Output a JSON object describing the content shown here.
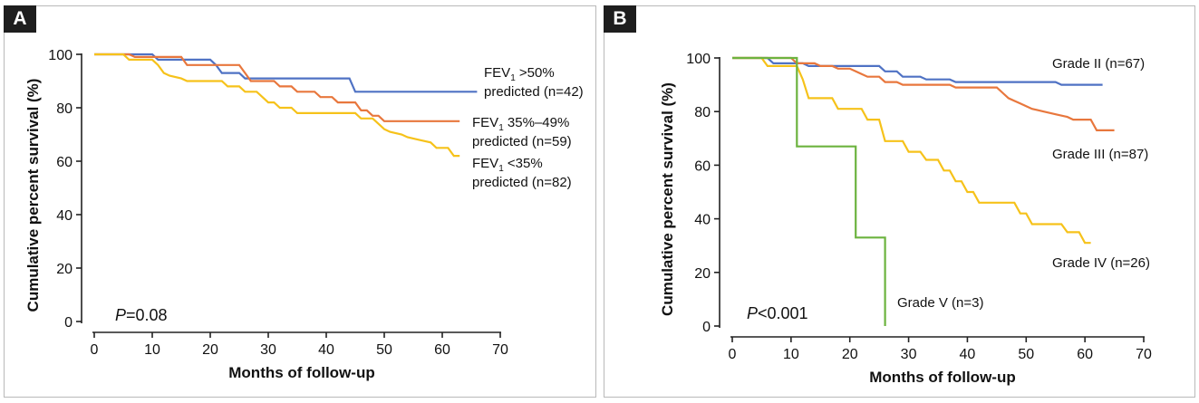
{
  "colors": {
    "blue": "#4f72c4",
    "orange": "#e8773d",
    "yellow": "#f6c21a",
    "green": "#6cb33f",
    "axis": "#222222",
    "frame": "#b9b9b9"
  },
  "chart_data": [
    {
      "panel_label": "A",
      "type": "line",
      "step": true,
      "xlabel": "Months of follow-up",
      "ylabel": "Cumulative percent survival (%)",
      "xlim": [
        0,
        70
      ],
      "ylim": [
        0,
        100
      ],
      "xticks": [
        0,
        10,
        20,
        30,
        40,
        50,
        60,
        70
      ],
      "yticks": [
        0,
        20,
        40,
        60,
        80,
        100
      ],
      "grid": false,
      "annotation": {
        "italic": "P",
        "rest": "=0.08"
      },
      "series": [
        {
          "label_line1": "FEV₁ >50%",
          "label_line2": "predicted  (n=42)",
          "color": "blue",
          "points": [
            [
              0,
              100
            ],
            [
              10,
              100
            ],
            [
              11,
              98
            ],
            [
              20,
              98
            ],
            [
              21,
              96
            ],
            [
              22,
              93
            ],
            [
              25,
              93
            ],
            [
              26,
              91
            ],
            [
              44,
              91
            ],
            [
              45,
              86
            ],
            [
              66,
              86
            ]
          ]
        },
        {
          "label_line1": "FEV₁ 35%–49%",
          "label_line2": "predicted (n=59)",
          "color": "orange",
          "points": [
            [
              0,
              100
            ],
            [
              6,
              100
            ],
            [
              7,
              99
            ],
            [
              15,
              99
            ],
            [
              16,
              96
            ],
            [
              25,
              96
            ],
            [
              26,
              93
            ],
            [
              27,
              90
            ],
            [
              31,
              90
            ],
            [
              32,
              88
            ],
            [
              34,
              88
            ],
            [
              35,
              86
            ],
            [
              38,
              86
            ],
            [
              39,
              84
            ],
            [
              41,
              84
            ],
            [
              42,
              82
            ],
            [
              45,
              82
            ],
            [
              46,
              79
            ],
            [
              47,
              79
            ],
            [
              48,
              77
            ],
            [
              49,
              77
            ],
            [
              50,
              75
            ],
            [
              63,
              75
            ]
          ]
        },
        {
          "label_line1": "FEV₁ <35%",
          "label_line2": "predicted (n=82)",
          "color": "yellow",
          "points": [
            [
              0,
              100
            ],
            [
              5,
              100
            ],
            [
              6,
              98
            ],
            [
              10,
              98
            ],
            [
              11,
              96
            ],
            [
              12,
              93
            ],
            [
              13,
              92
            ],
            [
              15,
              91
            ],
            [
              16,
              90
            ],
            [
              22,
              90
            ],
            [
              23,
              88
            ],
            [
              25,
              88
            ],
            [
              26,
              86
            ],
            [
              28,
              86
            ],
            [
              29,
              84
            ],
            [
              30,
              82
            ],
            [
              31,
              82
            ],
            [
              32,
              80
            ],
            [
              34,
              80
            ],
            [
              35,
              78
            ],
            [
              45,
              78
            ],
            [
              46,
              76
            ],
            [
              48,
              76
            ],
            [
              49,
              74
            ],
            [
              50,
              72
            ],
            [
              51,
              71
            ],
            [
              53,
              70
            ],
            [
              54,
              69
            ],
            [
              56,
              68
            ],
            [
              58,
              67
            ],
            [
              59,
              65
            ],
            [
              61,
              65
            ],
            [
              62,
              62
            ],
            [
              63,
              62
            ]
          ]
        }
      ]
    },
    {
      "panel_label": "B",
      "type": "line",
      "step": true,
      "xlabel": "Months of follow-up",
      "ylabel": "Cumulative percent survival (%)",
      "xlim": [
        0,
        70
      ],
      "ylim": [
        0,
        100
      ],
      "xticks": [
        0,
        10,
        20,
        30,
        40,
        50,
        60,
        70
      ],
      "yticks": [
        0,
        20,
        40,
        60,
        80,
        100
      ],
      "grid": false,
      "annotation": {
        "italic": "P",
        "rest": "<0.001"
      },
      "series": [
        {
          "label_line1": "Grade II (n=67)",
          "color": "blue",
          "points": [
            [
              0,
              100
            ],
            [
              6,
              100
            ],
            [
              7,
              98
            ],
            [
              12,
              98
            ],
            [
              13,
              97
            ],
            [
              25,
              97
            ],
            [
              26,
              95
            ],
            [
              28,
              95
            ],
            [
              29,
              93
            ],
            [
              32,
              93
            ],
            [
              33,
              92
            ],
            [
              37,
              92
            ],
            [
              38,
              91
            ],
            [
              55,
              91
            ],
            [
              56,
              90
            ],
            [
              63,
              90
            ]
          ]
        },
        {
          "label_line1": "Grade III (n=87)",
          "color": "orange",
          "points": [
            [
              0,
              100
            ],
            [
              10,
              100
            ],
            [
              11,
              98
            ],
            [
              14,
              98
            ],
            [
              15,
              97
            ],
            [
              17,
              97
            ],
            [
              18,
              96
            ],
            [
              20,
              96
            ],
            [
              21,
              95
            ],
            [
              22,
              94
            ],
            [
              23,
              93
            ],
            [
              25,
              93
            ],
            [
              26,
              91
            ],
            [
              28,
              91
            ],
            [
              29,
              90
            ],
            [
              37,
              90
            ],
            [
              38,
              89
            ],
            [
              45,
              89
            ],
            [
              46,
              87
            ],
            [
              47,
              85
            ],
            [
              48,
              84
            ],
            [
              49,
              83
            ],
            [
              50,
              82
            ],
            [
              51,
              81
            ],
            [
              53,
              80
            ],
            [
              55,
              79
            ],
            [
              57,
              78
            ],
            [
              58,
              77
            ],
            [
              61,
              77
            ],
            [
              62,
              73
            ],
            [
              65,
              73
            ]
          ]
        },
        {
          "label_line1": "Grade IV (n=26)",
          "color": "yellow",
          "points": [
            [
              0,
              100
            ],
            [
              5,
              100
            ],
            [
              6,
              97
            ],
            [
              11,
              97
            ],
            [
              12,
              92
            ],
            [
              13,
              85
            ],
            [
              17,
              85
            ],
            [
              18,
              81
            ],
            [
              22,
              81
            ],
            [
              23,
              77
            ],
            [
              25,
              77
            ],
            [
              26,
              69
            ],
            [
              29,
              69
            ],
            [
              30,
              65
            ],
            [
              32,
              65
            ],
            [
              33,
              62
            ],
            [
              35,
              62
            ],
            [
              36,
              58
            ],
            [
              37,
              58
            ],
            [
              38,
              54
            ],
            [
              39,
              54
            ],
            [
              40,
              50
            ],
            [
              41,
              50
            ],
            [
              42,
              46
            ],
            [
              48,
              46
            ],
            [
              49,
              42
            ],
            [
              50,
              42
            ],
            [
              51,
              38
            ],
            [
              56,
              38
            ],
            [
              57,
              35
            ],
            [
              59,
              35
            ],
            [
              60,
              31
            ],
            [
              61,
              31
            ]
          ]
        },
        {
          "label_line1": "Grade V (n=3)",
          "color": "green",
          "points": [
            [
              0,
              100
            ],
            [
              11,
              100
            ],
            [
              11,
              67
            ],
            [
              21,
              67
            ],
            [
              21,
              33
            ],
            [
              26,
              33
            ],
            [
              26,
              0
            ]
          ]
        }
      ]
    }
  ]
}
